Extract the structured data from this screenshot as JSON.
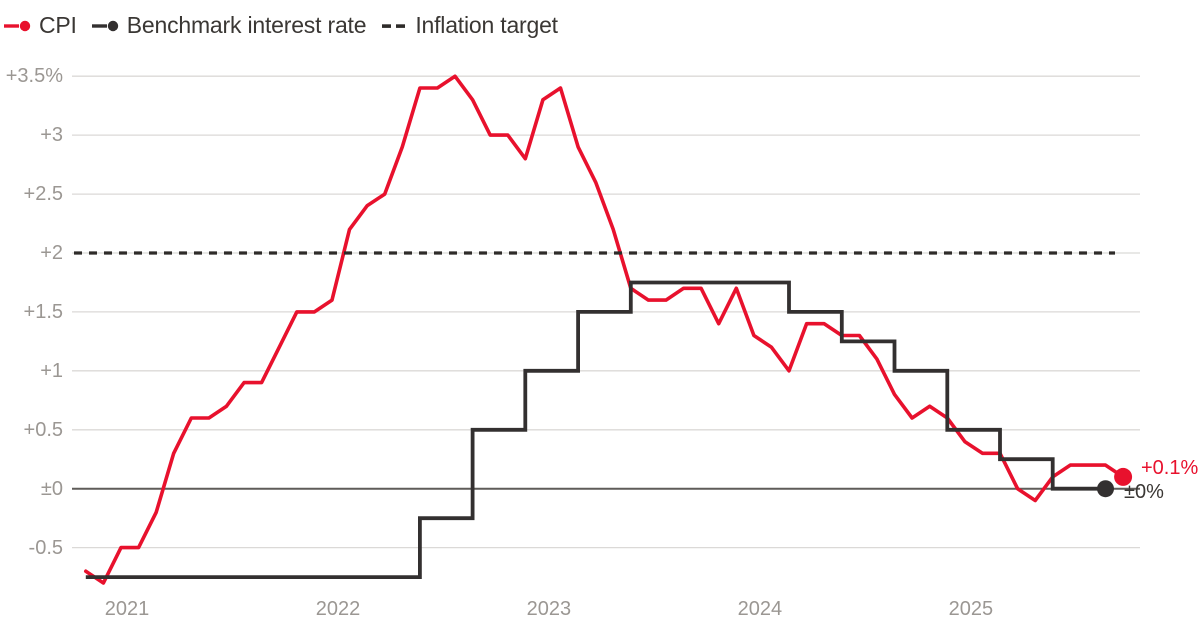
{
  "legend": {
    "items": [
      {
        "label": "CPI",
        "marker": "line-dot-icon",
        "color": "#e8112d"
      },
      {
        "label": "Benchmark interest rate",
        "marker": "line-dot-icon",
        "color": "#333030"
      },
      {
        "label": "Inflation target",
        "marker": "dashes-icon",
        "color": "#2e2b29"
      }
    ]
  },
  "annotations": {
    "cpi_end_label": "+0.1%",
    "benchmark_end_label": "±0%"
  },
  "colors": {
    "background": "#ffffff",
    "gridline": "#dbd9d7",
    "zero_line": "#5f5c59",
    "axis_text": "#9b9793",
    "legend_text": "#3a3734",
    "cpi_red": "#e8112d",
    "benchmark_dark": "#333030",
    "target_dark": "#2e2b29"
  },
  "chart_data": {
    "type": "line",
    "title": "",
    "grid": true,
    "legend_position": "top-left",
    "x_axis": {
      "tick_labels": [
        "2021",
        "2022",
        "2023",
        "2024",
        "2025"
      ],
      "tick_month_index": [
        0,
        12,
        24,
        36,
        48
      ],
      "range_start": "2020-11",
      "range_end": "2025-10"
    },
    "y_axis": {
      "tick_labels": [
        "+3.5%",
        "+3",
        "+2.5",
        "+2",
        "+1.5",
        "+1",
        "+0.5",
        "±0",
        "-0.5"
      ],
      "tick_values": [
        3.5,
        3,
        2.5,
        2,
        1.5,
        1,
        0.5,
        0,
        -0.5
      ],
      "unit": "%",
      "ylim": [
        -0.85,
        3.6
      ]
    },
    "series": [
      {
        "name": "CPI",
        "type": "line",
        "color": "#e8112d",
        "start": "2020-11",
        "values": [
          -0.7,
          -0.8,
          -0.5,
          -0.5,
          -0.2,
          0.3,
          0.6,
          0.6,
          0.7,
          0.9,
          0.9,
          1.2,
          1.5,
          1.5,
          1.6,
          2.2,
          2.4,
          2.5,
          2.9,
          3.4,
          3.4,
          3.5,
          3.3,
          3.0,
          3.0,
          2.8,
          3.3,
          3.4,
          2.9,
          2.6,
          2.2,
          1.7,
          1.6,
          1.6,
          1.7,
          1.7,
          1.4,
          1.7,
          1.3,
          1.2,
          1.0,
          1.4,
          1.4,
          1.3,
          1.3,
          1.1,
          0.8,
          0.6,
          0.7,
          0.6,
          0.4,
          0.3,
          0.3,
          0.0,
          -0.1,
          0.1,
          0.2,
          0.2,
          0.2,
          0.1
        ],
        "end_value_label": "+0.1%",
        "end_dot": true
      },
      {
        "name": "Benchmark interest rate",
        "type": "step",
        "color": "#333030",
        "changes": [
          [
            "2020-11",
            -0.75
          ],
          [
            "2022-06",
            -0.25
          ],
          [
            "2022-09",
            0.5
          ],
          [
            "2022-12",
            1.0
          ],
          [
            "2023-03",
            1.5
          ],
          [
            "2023-06",
            1.75
          ],
          [
            "2024-03",
            1.5
          ],
          [
            "2024-06",
            1.25
          ],
          [
            "2024-09",
            1.0
          ],
          [
            "2024-12",
            0.5
          ],
          [
            "2025-03",
            0.25
          ],
          [
            "2025-06",
            0.0
          ]
        ],
        "end": "2025-09",
        "end_value_label": "±0%",
        "end_dot": true
      },
      {
        "name": "Inflation target",
        "type": "dashed-horizontal",
        "color": "#2e2b29",
        "value": 2.0
      }
    ]
  }
}
